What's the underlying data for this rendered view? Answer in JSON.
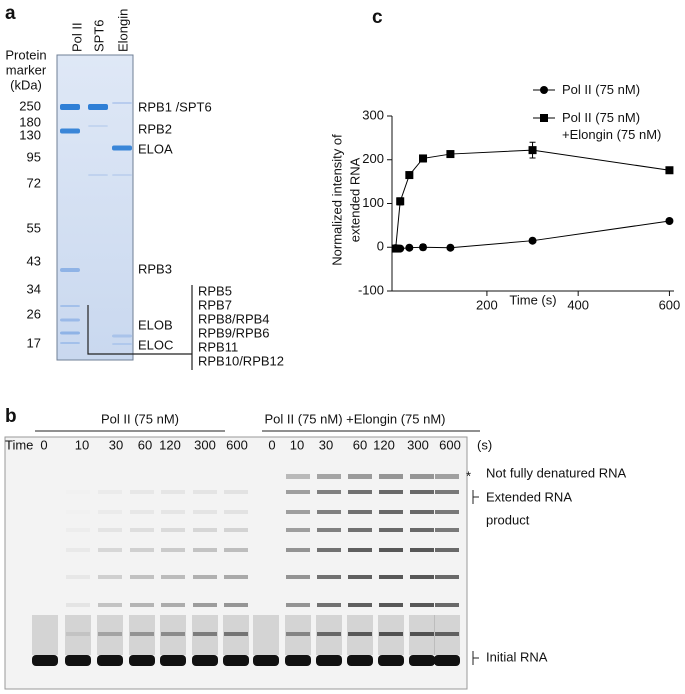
{
  "panel_a": {
    "label": "a",
    "lanes": [
      "Pol II",
      "SPT6",
      "Elongin"
    ],
    "marker_title": [
      "Protein",
      "marker",
      "(kDa)"
    ],
    "markers": [
      250,
      180,
      130,
      95,
      72,
      55,
      43,
      34,
      26,
      17
    ],
    "band_labels": [
      "RPB1 /SPT6",
      "RPB2",
      "ELOA",
      "RPB3",
      "ELOB",
      "ELOC"
    ],
    "bracket_labels": [
      "RPB5",
      "RPB7",
      "RPB8/RPB4",
      "RPB9/RPB6",
      "RPB11",
      "RPB10/RPB12"
    ]
  },
  "panel_b": {
    "label": "b",
    "groups": [
      "Pol II (75 nM)",
      "Pol II (75 nM) +Elongin (75 nM)"
    ],
    "time_label": "Time",
    "times": [
      0,
      10,
      30,
      60,
      120,
      300,
      600,
      0,
      10,
      30,
      60,
      120,
      300,
      600
    ],
    "time_unit": "(s)",
    "star": "*",
    "annotations": [
      "Not fully denatured RNA",
      "Extended RNA",
      "product",
      "Initial RNA"
    ]
  },
  "chart_data": {
    "label": "c",
    "type": "line",
    "ylabel": [
      "Normalized intensity of",
      "extended RNA"
    ],
    "xlabel": "Time (s)",
    "xlim": [
      -8,
      610
    ],
    "xticks": [
      200,
      400,
      600
    ],
    "ylim": [
      -100,
      300
    ],
    "yticks": [
      -100,
      0,
      100,
      200,
      300
    ],
    "legend": "upper right",
    "series": [
      {
        "name": "Pol II (75 nM)",
        "color": "#000000",
        "marker": "circle",
        "x": [
          0,
          10,
          30,
          60,
          120,
          300,
          600
        ],
        "values": [
          -2,
          -3,
          -1,
          0,
          -1,
          15,
          60
        ],
        "errors": [
          0,
          0,
          3,
          6,
          0,
          0,
          0
        ]
      },
      {
        "name": "Pol II (75 nM) +Elongin (75 nM)",
        "color": "#000000",
        "marker": "square",
        "x": [
          0,
          10,
          30,
          60,
          120,
          300,
          600
        ],
        "values": [
          -3,
          105,
          165,
          203,
          213,
          222,
          176
        ],
        "errors": [
          0,
          8,
          5,
          8,
          4,
          18,
          6
        ]
      }
    ]
  }
}
